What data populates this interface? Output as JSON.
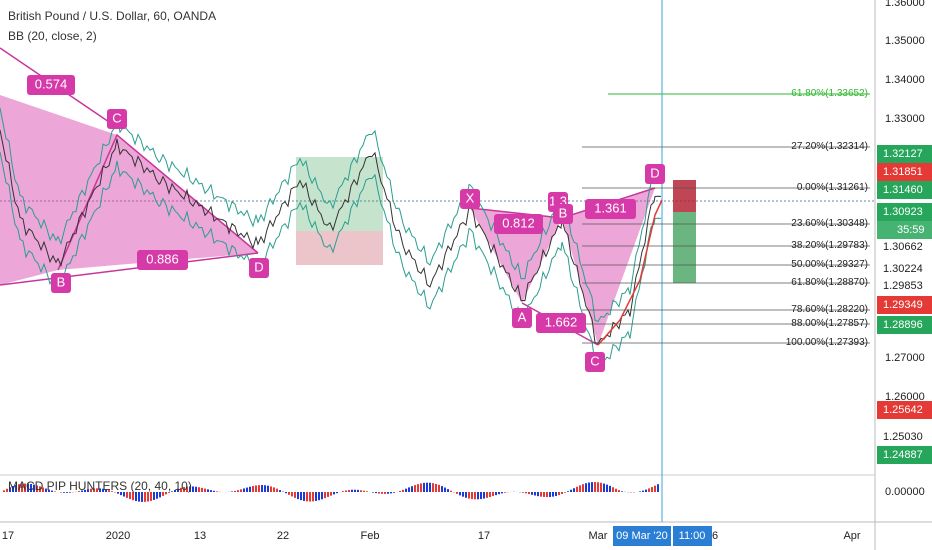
{
  "header": {
    "symbol": "British Pound / U.S. Dollar, 60, OANDA",
    "indicator": "BB (20, close, 2)"
  },
  "price_axis": {
    "labels": [
      "1.36000",
      "1.35000",
      "1.34000",
      "1.33000",
      "1.27000",
      "1.26000"
    ],
    "tags": [
      {
        "text": "1.32127",
        "color": "green"
      },
      {
        "text": "1.31851",
        "color": "red"
      },
      {
        "text": "1.31460",
        "color": "green"
      },
      {
        "text": "1.30923",
        "color": "green"
      },
      {
        "text": "1.30662",
        "color": "white"
      },
      {
        "text": "1.30224",
        "color": "white"
      },
      {
        "text": "1.29853",
        "color": "white"
      },
      {
        "text": "1.29349",
        "color": "red"
      },
      {
        "text": "1.28896",
        "color": "green"
      },
      {
        "text": "1.25642",
        "color": "red"
      },
      {
        "text": "1.25030",
        "color": "white"
      },
      {
        "text": "1.24887",
        "color": "green"
      }
    ],
    "timer": "35:59"
  },
  "fib_levels": [
    "61.80%(1.33652)",
    "27.20%(1.32314)",
    "0.00%(1.31261)",
    "23.60%(1.30348)",
    "38.20%(1.29783)",
    "50.00%(1.29327)",
    "61.80%(1.28870)",
    "78.60%(1.28220)",
    "88.00%(1.27857)",
    "100.00%(1.27393)"
  ],
  "pattern_labels": [
    "0.574",
    "C",
    "0.886",
    "B",
    "D",
    "X",
    "0.812",
    "1.3",
    "B",
    "1.361",
    "D",
    "A",
    "1.662",
    "C"
  ],
  "time_axis": {
    "labels": [
      "17",
      "2020",
      "13",
      "22",
      "Feb",
      "17",
      "Mar",
      "6",
      "Apr"
    ],
    "cursor_date": "09 Mar '20",
    "cursor_time": "11:00"
  },
  "macd": {
    "title": "MACD PIP HUNTERS (20, 40, 10)",
    "zero": "0.00000"
  }
}
